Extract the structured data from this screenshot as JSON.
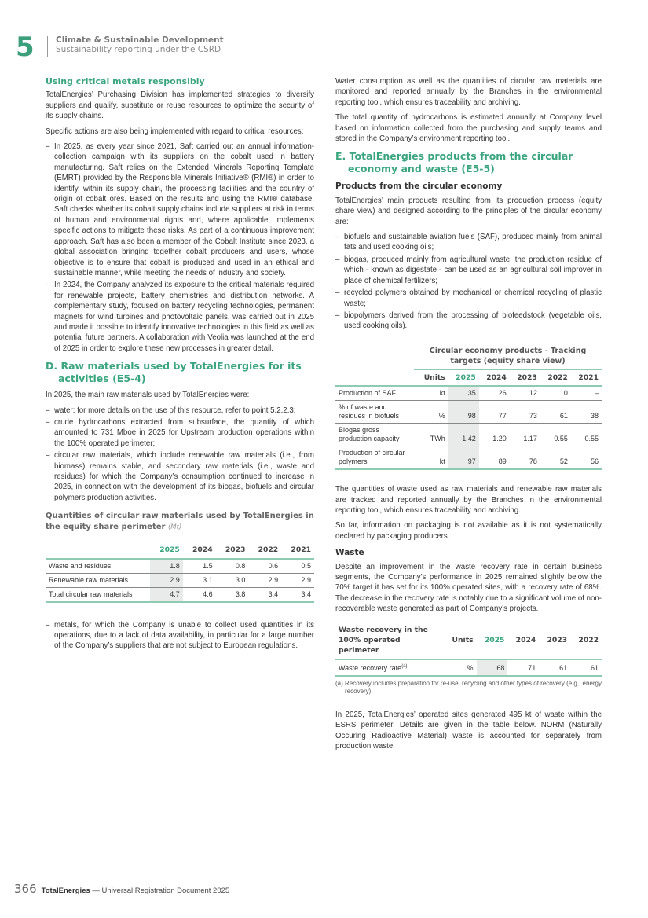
{
  "header": {
    "chapter": "5",
    "title": "Climate & Sustainable Development",
    "subtitle": "Sustainability reporting under the CSRD"
  },
  "left": {
    "h_metals": "Using critical metals responsibly",
    "p1": "TotalEnergies’ Purchasing Division has implemented strategies to diversify suppliers and qualify, substitute or reuse resources to optimize the security of its supply chains.",
    "p2": "Specific actions are also being implemented with regard to critical resources:",
    "metals_list": [
      "In 2025, as every year since 2021, Saft carried out an annual information-collection campaign with its suppliers on the cobalt used in battery manufacturing. Saft relies on the Extended Minerals Reporting Template (EMRT) provided by the Responsible Minerals Initiative® (RMI®) in order to identify, within its supply chain, the processing facilities and the country of origin of cobalt ores. Based on the results and using the RMI® database, Saft checks whether its cobalt supply chains include suppliers at risk in terms of human and environmental rights and, where applicable, implements specific actions to mitigate these risks. As part of a continuous improvement approach, Saft has also been a member of the Cobalt Institute since 2023, a global association bringing together cobalt producers and users, whose objective is to ensure that cobalt is produced and used in an ethical and sustainable manner, while meeting the needs of industry and society.",
      "In 2024, the Company analyzed its exposure to the critical materials required for renewable projects, battery chemistries and distribution networks. A complementary study, focused on battery recycling technologies, permanent magnets for wind turbines and photovoltaic panels, was carried out in 2025 and made it possible to identify innovative technologies in this field as well as potential future partners. A collaboration with Veolia was launched at the end of 2025 in order to explore these new processes in greater detail."
    ],
    "h_raw": "D. Raw materials used by TotalEnergies for its activities (E5-4)",
    "p3": "In 2025, the main raw materials used by TotalEnergies were:",
    "raw_list": [
      "water: for more details on the use of this resource, refer to point 5.2.2.3;",
      "crude hydrocarbons extracted from subsurface, the quantity of which amounted to 731 Mboe in 2025 for Upstream production operations within the 100% operated perimeter;",
      "circular raw materials, which include renewable raw materials (i.e., from biomass) remains stable, and secondary raw materials (i.e., waste and residues) for which the Company’s consumption continued to increase in 2025, in connection with the development of its biogas, biofuels and circular polymers production activities."
    ],
    "table1": {
      "title": "Quantities of circular raw materials used by TotalEnergies in the equity share perimeter",
      "unit": "(Mt)",
      "headers": [
        "",
        "2025",
        "2024",
        "2023",
        "2022",
        "2021"
      ],
      "rows": [
        [
          "Waste and residues",
          "1.8",
          "1.5",
          "0.8",
          "0.6",
          "0.5"
        ],
        [
          "Renewable raw materials",
          "2.9",
          "3.1",
          "3.0",
          "2.9",
          "2.9"
        ],
        [
          "Total circular raw materials",
          "4.7",
          "4.6",
          "3.8",
          "3.4",
          "3.4"
        ]
      ]
    },
    "metals_item": "metals, for which the Company is unable to collect used quantities in its operations, due to a lack of data availability, in particular for a large number of the Company’s suppliers that are not subject to European regulations."
  },
  "right": {
    "p1": "Water consumption as well as the quantities of circular raw materials are monitored and reported annually by the Branches in the environmental reporting tool, which ensures traceability and archiving.",
    "p2": "The total quantity of hydrocarbons is estimated annually at Company level based on information collected from the purchasing and supply teams and stored in the Company’s environment reporting tool.",
    "h_products": "E. TotalEnergies products from the circular economy and waste (E5-5)",
    "h_circ": "Products from the circular economy",
    "p3": "TotalEnergies’ main products resulting from its production process (equity share view) and designed according to the principles of the circular economy are:",
    "prod_list": [
      "biofuels and sustainable aviation fuels (SAF), produced mainly from animal fats and used cooking oils;",
      "biogas, produced mainly from agricultural waste, the production residue of which - known as digestate - can be used as an agricultural soil improver in place of chemical fertilizers;",
      "recycled polymers obtained by mechanical or chemical recycling of plastic waste;",
      "biopolymers derived from the processing of biofeedstock (vegetable oils, used cooking oils)."
    ],
    "table2": {
      "title": "Circular economy products - Tracking targets (equity share view)",
      "headers": [
        "",
        "Units",
        "2025",
        "2024",
        "2023",
        "2022",
        "2021"
      ],
      "rows": [
        [
          "Production of SAF",
          "kt",
          "35",
          "26",
          "12",
          "10",
          "–"
        ],
        [
          "% of waste and residues in biofuels",
          "%",
          "98",
          "77",
          "73",
          "61",
          "38"
        ],
        [
          "Biogas gross production capacity",
          "TWh",
          "1.42",
          "1.20",
          "1.17",
          "0.55",
          "0.55"
        ],
        [
          "Production of circular polymers",
          "kt",
          "97",
          "89",
          "78",
          "52",
          "56"
        ]
      ]
    },
    "p4": "The quantities of waste used as raw materials and renewable raw materials are tracked and reported annually by the Branches in the environmental reporting tool, which ensures traceability and archiving.",
    "p5": "So far, information on packaging is not available as it is not systematically declared by packaging producers.",
    "h_waste": "Waste",
    "p6": "Despite an improvement in the waste recovery rate in certain business segments, the Company’s performance in 2025 remained slightly below the 70% target it has set for its 100% operated sites, with a recovery rate of 68%. The decrease in the recovery rate is notably due to a significant volume of non-recoverable waste generated as part of Company’s projects.",
    "table3": {
      "headers": [
        "Waste recovery in the 100% operated perimeter",
        "Units",
        "2025",
        "2024",
        "2023",
        "2022"
      ],
      "row_label": "Waste recovery rate",
      "row_sup": "(a)",
      "row": [
        "%",
        "68",
        "71",
        "61",
        "61"
      ],
      "note": "(a) Recovery includes preparation for re-use, recycling and other types of recovery (e.g., energy recovery)."
    },
    "p7": "In 2025, TotalEnergies’ operated sites generated 495 kt of waste within the ESRS perimeter. Details are given in the table below. NORM (Naturally Occuring Radioactive Material) waste is accounted for separately from production waste."
  },
  "footer": {
    "page": "366",
    "brand": "TotalEnergies",
    "doc": " — Universal Registration Document 2025"
  },
  "colors": {
    "accent": "#3aa57f",
    "highlight": "#e9ebea"
  }
}
